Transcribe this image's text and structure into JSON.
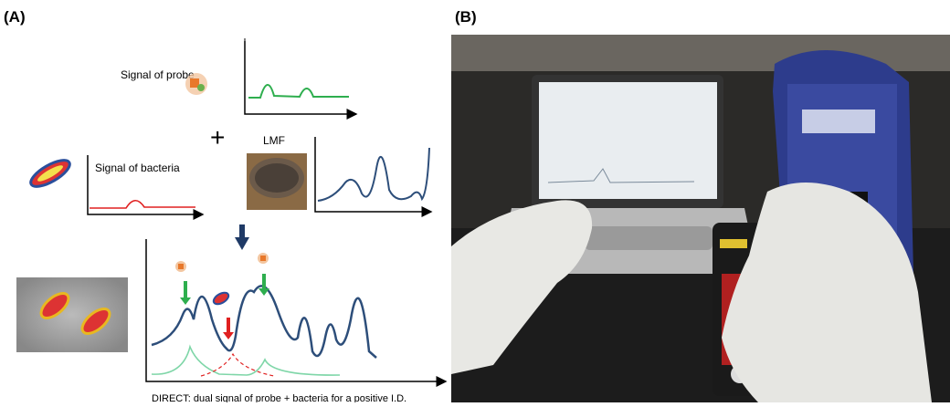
{
  "panel_a": {
    "label": "(A)",
    "probe_label": "Signal of probe",
    "bacteria_label": "Signal of bacteria",
    "lmf_label": "LMF",
    "caption": "DIRECT: dual signal of probe + bacteria for a positive I.D."
  },
  "panel_b": {
    "label": "(B)"
  }
}
